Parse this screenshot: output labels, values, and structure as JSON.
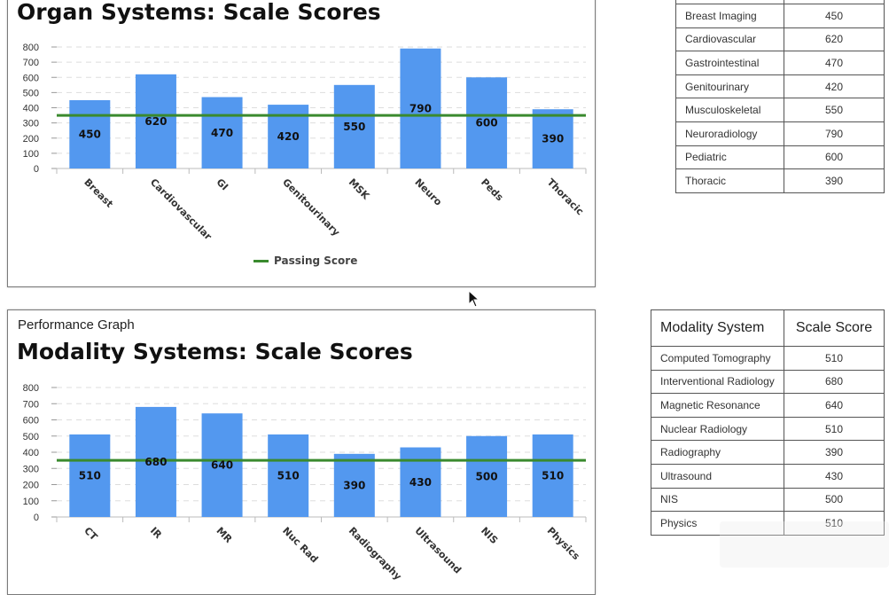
{
  "organ_chart": {
    "title": "Organ Systems: Scale Scores",
    "legend": "Passing Score"
  },
  "modality_chart": {
    "subtitle": "Performance Graph",
    "title": "Modality Systems: Scale Scores"
  },
  "organ_table": {
    "rows": [
      {
        "name": "Breast Imaging",
        "score": "450"
      },
      {
        "name": "Cardiovascular",
        "score": "620"
      },
      {
        "name": "Gastrointestinal",
        "score": "470"
      },
      {
        "name": "Genitourinary",
        "score": "420"
      },
      {
        "name": "Musculoskeletal",
        "score": "550"
      },
      {
        "name": "Neuroradiology",
        "score": "790"
      },
      {
        "name": "Pediatric",
        "score": "600"
      },
      {
        "name": "Thoracic",
        "score": "390"
      }
    ]
  },
  "modality_table": {
    "headers": [
      "Modality System",
      "Scale Score"
    ],
    "rows": [
      {
        "name": "Computed Tomography",
        "score": "510"
      },
      {
        "name": "Interventional Radiology",
        "score": "680"
      },
      {
        "name": "Magnetic Resonance",
        "score": "640"
      },
      {
        "name": "Nuclear Radiology",
        "score": "510"
      },
      {
        "name": "Radiography",
        "score": "390"
      },
      {
        "name": "Ultrasound",
        "score": "430"
      },
      {
        "name": "NIS",
        "score": "500"
      },
      {
        "name": "Physics",
        "score": "510"
      }
    ]
  },
  "colors": {
    "bar": "#5398ef",
    "passing_line": "#3a8a2e",
    "grid": "#dddddd"
  },
  "chart_data": [
    {
      "type": "bar",
      "title": "Organ Systems: Scale Scores",
      "categories": [
        "Breast",
        "Cardiovascular",
        "GI",
        "Genitourinary",
        "MSK",
        "Neuro",
        "Peds",
        "Thoracic"
      ],
      "values": [
        450,
        620,
        470,
        420,
        550,
        790,
        600,
        390
      ],
      "data_labels": [
        "450",
        "620",
        "470",
        "420",
        "550",
        "790",
        "600",
        "390"
      ],
      "reference_line": {
        "name": "Passing Score",
        "value": 350
      },
      "yticks": [
        "800",
        "700",
        "600",
        "500",
        "400",
        "300",
        "200",
        "100",
        "0"
      ],
      "ylim": [
        0,
        800
      ],
      "grid": true,
      "legend": "bottom"
    },
    {
      "type": "bar",
      "title": "Modality Systems: Scale Scores",
      "categories": [
        "CT",
        "IR",
        "MR",
        "Nuc Rad",
        "Radiography",
        "Ultrasound",
        "NIS",
        "Physics"
      ],
      "values": [
        510,
        680,
        640,
        510,
        390,
        430,
        500,
        510
      ],
      "data_labels": [
        "510",
        "680",
        "640",
        "510",
        "390",
        "430",
        "500",
        "510"
      ],
      "reference_line": {
        "value": 350
      },
      "yticks": [
        "800",
        "700",
        "600",
        "500",
        "400",
        "300",
        "200",
        "100",
        "0"
      ],
      "ylim": [
        0,
        800
      ],
      "grid": true
    }
  ]
}
